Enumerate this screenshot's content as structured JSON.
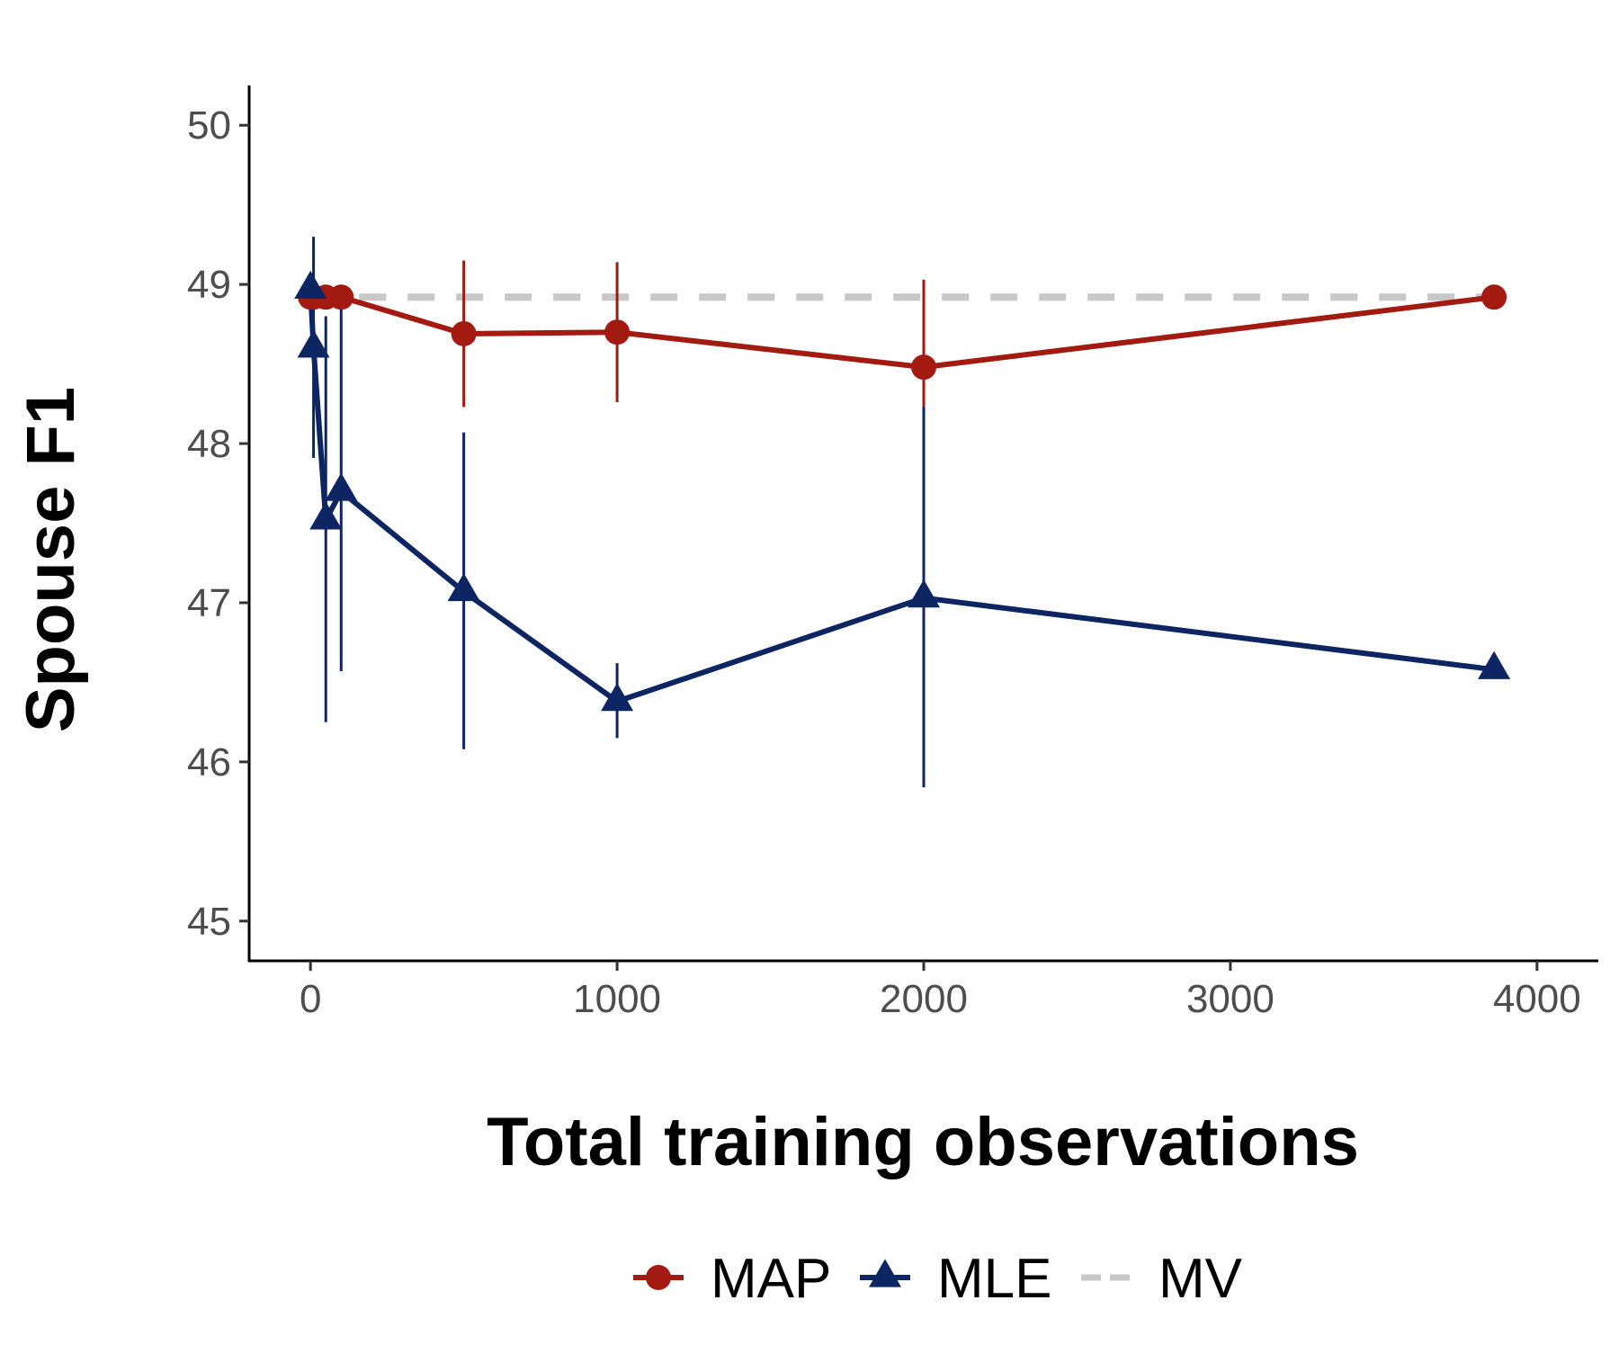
{
  "chart_data": {
    "type": "line",
    "title": "",
    "xlabel": "Total training observations",
    "ylabel": "Spouse F1",
    "xlim": [
      -200,
      4200
    ],
    "ylim": [
      44.75,
      50.25
    ],
    "x_ticks": [
      0,
      1000,
      2000,
      3000,
      4000
    ],
    "x_tick_labels": [
      "0",
      "1000",
      "2000",
      "3000",
      "4000"
    ],
    "y_ticks": [
      45,
      46,
      47,
      48,
      49,
      50
    ],
    "y_tick_labels": [
      "45",
      "46",
      "47",
      "48",
      "49",
      "50"
    ],
    "grid": false,
    "legend_position": "bottom",
    "series": [
      {
        "name": "MAP",
        "color": "#a31a11",
        "marker": "circle",
        "x": [
          0,
          10,
          50,
          100,
          500,
          1000,
          2000,
          3860
        ],
        "y": [
          48.92,
          48.92,
          48.92,
          48.92,
          48.69,
          48.7,
          48.48,
          48.92
        ],
        "err_low": [
          48.92,
          48.92,
          48.92,
          48.92,
          48.23,
          48.26,
          47.93,
          48.92
        ],
        "err_high": [
          48.92,
          48.92,
          48.92,
          48.92,
          49.15,
          49.14,
          49.03,
          48.92
        ]
      },
      {
        "name": "MLE",
        "color": "#0d2563",
        "marker": "triangle",
        "x": [
          0,
          10,
          50,
          100,
          500,
          1000,
          2000,
          3860
        ],
        "y": [
          48.97,
          48.6,
          47.52,
          47.7,
          47.07,
          46.38,
          47.03,
          46.58
        ],
        "err_low": [
          48.97,
          47.91,
          46.25,
          46.57,
          46.08,
          46.15,
          45.84,
          46.58
        ],
        "err_high": [
          48.97,
          49.3,
          48.8,
          48.85,
          48.07,
          46.62,
          48.23,
          46.58
        ]
      },
      {
        "name": "MV",
        "color": "#c8c8c8",
        "style": "dashed",
        "x": [
          0,
          3860
        ],
        "y": [
          48.92,
          48.92
        ]
      }
    ]
  }
}
